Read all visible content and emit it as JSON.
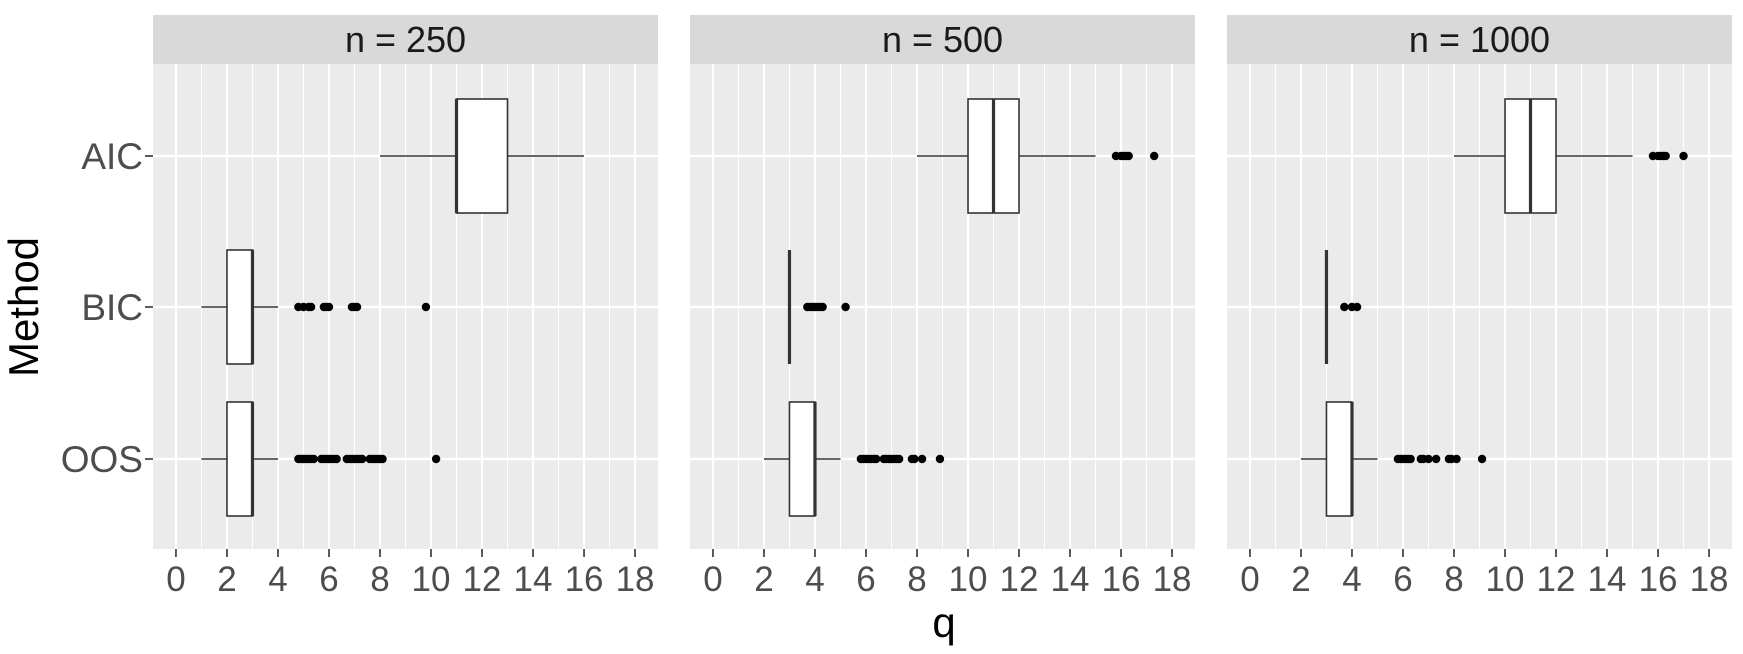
{
  "chart_data": {
    "type": "boxplot",
    "orientation": "horizontal",
    "xlabel": "q",
    "ylabel": "Method",
    "xlim": [
      -0.9,
      18.9
    ],
    "xticks": [
      0,
      2,
      4,
      6,
      8,
      10,
      12,
      14,
      16,
      18
    ],
    "categories": [
      "AIC",
      "BIC",
      "OOS"
    ],
    "grid": true,
    "colors": {
      "panel_bg": "#ebebeb",
      "strip_bg": "#d9d9d9",
      "grid": "#ffffff",
      "box_fill": "#ffffff",
      "line": "#333333",
      "outlier": "#000000",
      "text": "#4d4d4d"
    },
    "panels": [
      {
        "strip": "n = 250",
        "boxes": [
          {
            "method": "AIC",
            "whisker_low": 8,
            "q1": 11,
            "median": 11,
            "q3": 13,
            "whisker_high": 16,
            "outliers": []
          },
          {
            "method": "BIC",
            "whisker_low": 1,
            "q1": 2,
            "median": 3,
            "q3": 3,
            "whisker_high": 4,
            "outliers": [
              4.8,
              5.0,
              5.2,
              5.3,
              5.8,
              5.9,
              6.0,
              6.9,
              7.0,
              7.1,
              9.8
            ]
          },
          {
            "method": "OOS",
            "whisker_low": 1,
            "q1": 2,
            "median": 3,
            "q3": 3,
            "whisker_high": 4,
            "outliers": [
              4.8,
              4.9,
              5.0,
              5.1,
              5.2,
              5.3,
              5.4,
              5.7,
              5.8,
              5.9,
              6.0,
              6.1,
              6.2,
              6.3,
              6.7,
              6.8,
              6.9,
              7.0,
              7.1,
              7.2,
              7.3,
              7.6,
              7.7,
              7.8,
              7.9,
              8.0,
              8.1,
              10.2
            ]
          }
        ]
      },
      {
        "strip": "n = 500",
        "boxes": [
          {
            "method": "AIC",
            "whisker_low": 8,
            "q1": 10,
            "median": 11,
            "q3": 12,
            "whisker_high": 15,
            "outliers": [
              15.8,
              16.0,
              16.1,
              16.2,
              16.3,
              17.3
            ]
          },
          {
            "method": "BIC",
            "whisker_low": 3,
            "q1": 3,
            "median": 3,
            "q3": 3,
            "whisker_high": 3,
            "outliers": [
              3.7,
              3.8,
              3.9,
              4.0,
              4.1,
              4.2,
              4.3,
              5.2
            ]
          },
          {
            "method": "OOS",
            "whisker_low": 2,
            "q1": 3,
            "median": 4,
            "q3": 4,
            "whisker_high": 5,
            "outliers": [
              5.8,
              5.9,
              6.0,
              6.1,
              6.2,
              6.3,
              6.4,
              6.7,
              6.8,
              6.9,
              7.0,
              7.1,
              7.2,
              7.3,
              7.8,
              7.9,
              8.2,
              8.9
            ]
          }
        ]
      },
      {
        "strip": "n = 1000",
        "boxes": [
          {
            "method": "AIC",
            "whisker_low": 8,
            "q1": 10,
            "median": 11,
            "q3": 12,
            "whisker_high": 15,
            "outliers": [
              15.8,
              16.0,
              16.1,
              16.2,
              16.3,
              17.0
            ]
          },
          {
            "method": "BIC",
            "whisker_low": 3,
            "q1": 3,
            "median": 3,
            "q3": 3,
            "whisker_high": 3,
            "outliers": [
              3.7,
              4.0,
              4.2
            ]
          },
          {
            "method": "OOS",
            "whisker_low": 2,
            "q1": 3,
            "median": 4,
            "q3": 4,
            "whisker_high": 5,
            "outliers": [
              5.8,
              5.9,
              6.0,
              6.1,
              6.2,
              6.3,
              6.7,
              6.8,
              7.0,
              7.3,
              7.8,
              7.9,
              8.1,
              9.1
            ]
          }
        ]
      }
    ]
  }
}
